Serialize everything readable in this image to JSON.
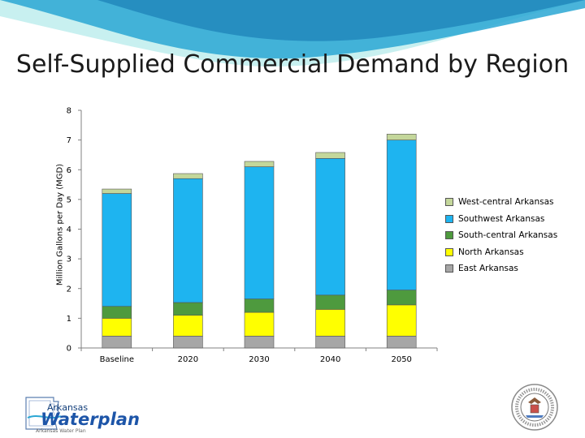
{
  "title": "Self-Supplied Commercial Demand by Region",
  "colors": {
    "east": "#a6a6a6",
    "north": "#ffff00",
    "south_central": "#4e9a3e",
    "southwest": "#1eb4f0",
    "west_central": "#c4d79b",
    "banner_light": "#c8f0f0",
    "banner_blue": "#2aa7d4"
  },
  "logo": {
    "line1": "Arkansas",
    "line2": "Waterplan",
    "line3": "Arkansas Water Plan"
  },
  "icons": [
    "arkansas-water-plan-logo-icon",
    "arkansas-state-seal-icon"
  ],
  "chart_data": {
    "type": "bar",
    "stacked": true,
    "categories": [
      "Baseline",
      "2020",
      "2030",
      "2040",
      "2050"
    ],
    "series": [
      {
        "name": "East Arkansas",
        "color": "#a6a6a6",
        "values": [
          0.4,
          0.4,
          0.4,
          0.4,
          0.4
        ]
      },
      {
        "name": "North Arkansas",
        "color": "#ffff00",
        "values": [
          0.6,
          0.7,
          0.8,
          0.9,
          1.05
        ]
      },
      {
        "name": "South-central Arkansas",
        "color": "#4e9a3e",
        "values": [
          0.4,
          0.43,
          0.45,
          0.48,
          0.5
        ]
      },
      {
        "name": "Southwest Arkansas",
        "color": "#1eb4f0",
        "values": [
          3.8,
          4.17,
          4.45,
          4.6,
          5.05
        ]
      },
      {
        "name": "West-central Arkansas",
        "color": "#c4d79b",
        "values": [
          0.15,
          0.17,
          0.18,
          0.2,
          0.2
        ]
      }
    ],
    "xlabel": "",
    "ylabel": "Million Gallons per Day (MGD)",
    "ylim": [
      0,
      8
    ],
    "yticks": [
      "0",
      "1",
      "2",
      "3",
      "4",
      "5",
      "6",
      "7",
      "8"
    ],
    "grid": false,
    "legend_position": "right",
    "legend_order": [
      "West-central Arkansas",
      "Southwest Arkansas",
      "South-central Arkansas",
      "North Arkansas",
      "East Arkansas"
    ]
  }
}
